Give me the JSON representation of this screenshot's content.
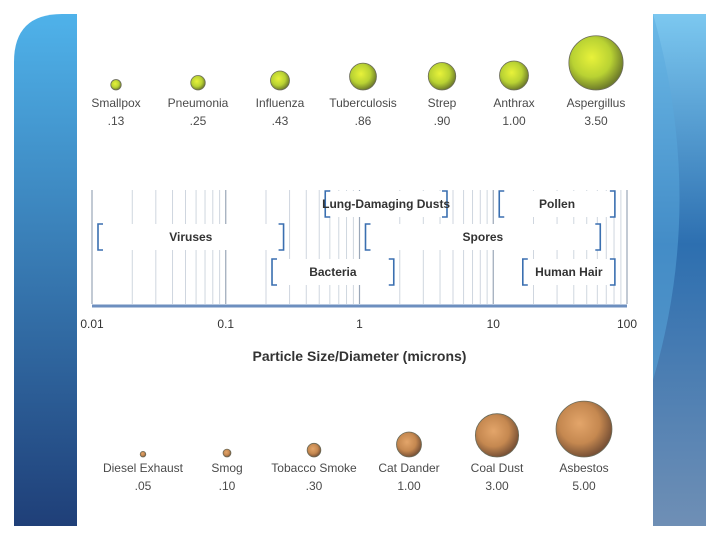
{
  "theme": {
    "accent_dark": "#1f4a86",
    "accent_light": "#4fb2ea",
    "bracket_color": "#3a6fb0",
    "axis_color": "#6d8fbf"
  },
  "diagram": {
    "axis": {
      "title": "Particle Size/Diameter (microns)",
      "ticks": [
        {
          "value": 0.01,
          "label": "0.01"
        },
        {
          "value": 0.1,
          "label": "0.1"
        },
        {
          "value": 1,
          "label": "1"
        },
        {
          "value": 10,
          "label": "10"
        },
        {
          "value": 100,
          "label": "100"
        }
      ],
      "min": 0.01,
      "max": 100
    },
    "ranges": [
      {
        "label": "Lung-Damaging Dusts",
        "from": 0.5,
        "to": 5,
        "row": 0
      },
      {
        "label": "Pollen",
        "from": 10,
        "to": 90,
        "row": 0
      },
      {
        "label": "Viruses",
        "from": 0.01,
        "to": 0.3,
        "row": 1
      },
      {
        "label": "Spores",
        "from": 1,
        "to": 70,
        "row": 1
      },
      {
        "label": "Bacteria",
        "from": 0.2,
        "to": 2,
        "row": 2
      },
      {
        "label": "Human Hair",
        "from": 15,
        "to": 90,
        "row": 2
      }
    ],
    "pathogens": [
      {
        "name": "Smallpox",
        "value": ".13",
        "size": 0.13
      },
      {
        "name": "Pneumonia",
        "value": ".25",
        "size": 0.25
      },
      {
        "name": "Influenza",
        "value": ".43",
        "size": 0.43
      },
      {
        "name": "Tuberculosis",
        "value": ".86",
        "size": 0.86
      },
      {
        "name": "Strep",
        "value": ".90",
        "size": 0.9
      },
      {
        "name": "Anthrax",
        "value": "1.00",
        "size": 1.0
      },
      {
        "name": "Aspergillus",
        "value": "3.50",
        "size": 3.5
      }
    ],
    "pollutants": [
      {
        "name": "Diesel Exhaust",
        "value": ".05",
        "size": 0.05
      },
      {
        "name": "Smog",
        "value": ".10",
        "size": 0.1
      },
      {
        "name": "Tobacco Smoke",
        "value": ".30",
        "size": 0.3
      },
      {
        "name": "Cat Dander",
        "value": "1.00",
        "size": 1.0
      },
      {
        "name": "Coal Dust",
        "value": "3.00",
        "size": 3.0
      },
      {
        "name": "Asbestos",
        "value": "5.00",
        "size": 5.0
      }
    ]
  }
}
